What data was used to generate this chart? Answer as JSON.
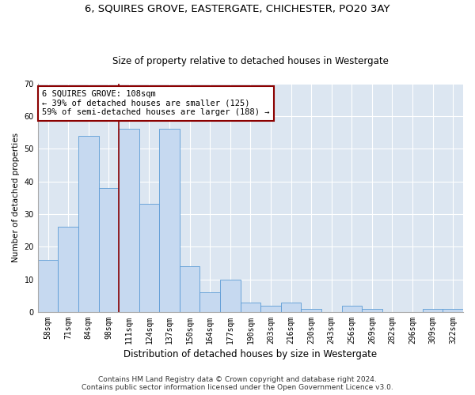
{
  "title1": "6, SQUIRES GROVE, EASTERGATE, CHICHESTER, PO20 3AY",
  "title2": "Size of property relative to detached houses in Westergate",
  "xlabel": "Distribution of detached houses by size in Westergate",
  "ylabel": "Number of detached properties",
  "bar_labels": [
    "58sqm",
    "71sqm",
    "84sqm",
    "98sqm",
    "111sqm",
    "124sqm",
    "137sqm",
    "150sqm",
    "164sqm",
    "177sqm",
    "190sqm",
    "203sqm",
    "216sqm",
    "230sqm",
    "243sqm",
    "256sqm",
    "269sqm",
    "282sqm",
    "296sqm",
    "309sqm",
    "322sqm"
  ],
  "bar_values": [
    16,
    26,
    54,
    38,
    56,
    33,
    56,
    14,
    6,
    10,
    3,
    2,
    3,
    1,
    0,
    2,
    1,
    0,
    0,
    1,
    1
  ],
  "bar_color": "#c6d9f0",
  "bar_edge_color": "#5b9bd5",
  "vline_x": 3.5,
  "vline_color": "#8b0000",
  "annotation_text": "6 SQUIRES GROVE: 108sqm\n← 39% of detached houses are smaller (125)\n59% of semi-detached houses are larger (188) →",
  "annotation_box_color": "white",
  "annotation_box_edge_color": "#8b0000",
  "ylim": [
    0,
    70
  ],
  "yticks": [
    0,
    10,
    20,
    30,
    40,
    50,
    60,
    70
  ],
  "footnote1": "Contains HM Land Registry data © Crown copyright and database right 2024.",
  "footnote2": "Contains public sector information licensed under the Open Government Licence v3.0.",
  "plot_bg_color": "#dce6f1",
  "title1_fontsize": 9.5,
  "title2_fontsize": 8.5,
  "xlabel_fontsize": 8.5,
  "ylabel_fontsize": 7.5,
  "tick_fontsize": 7,
  "annotation_fontsize": 7.5,
  "footnote_fontsize": 6.5
}
